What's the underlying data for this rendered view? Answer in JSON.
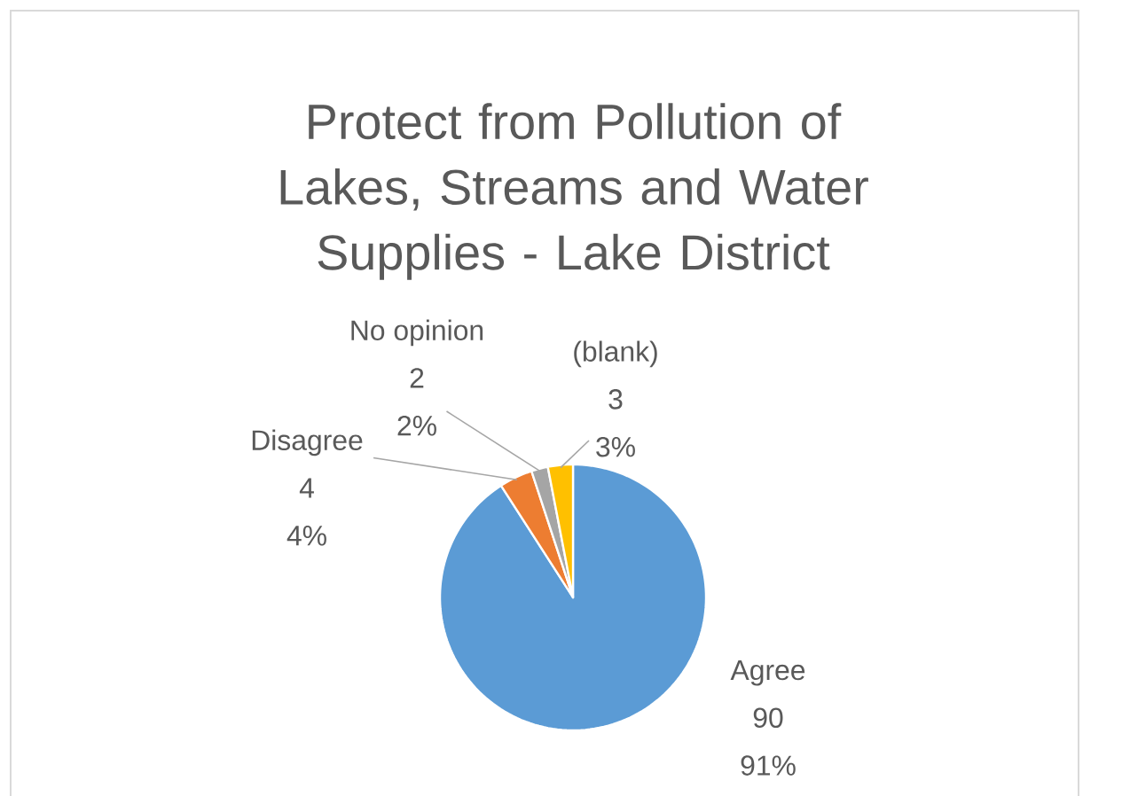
{
  "chart_data": {
    "type": "pie",
    "title": "Protect from Pollution of Lakes, Streams and Water Supplies - Lake District",
    "categories": [
      "Agree",
      "Disagree",
      "No opinion",
      "(blank)"
    ],
    "values": [
      90,
      4,
      2,
      3
    ],
    "value_labels": [
      "90",
      "4",
      "2",
      "3"
    ],
    "annotations": [
      {
        "text": "91%",
        "x": "Agree"
      },
      {
        "text": "4%",
        "x": "Disagree"
      },
      {
        "text": "2%",
        "x": "No opinion"
      },
      {
        "text": "3%",
        "x": "(blank)"
      }
    ],
    "colors": [
      "#5b9bd5",
      "#ed7d31",
      "#a5a5a5",
      "#ffc000"
    ]
  }
}
